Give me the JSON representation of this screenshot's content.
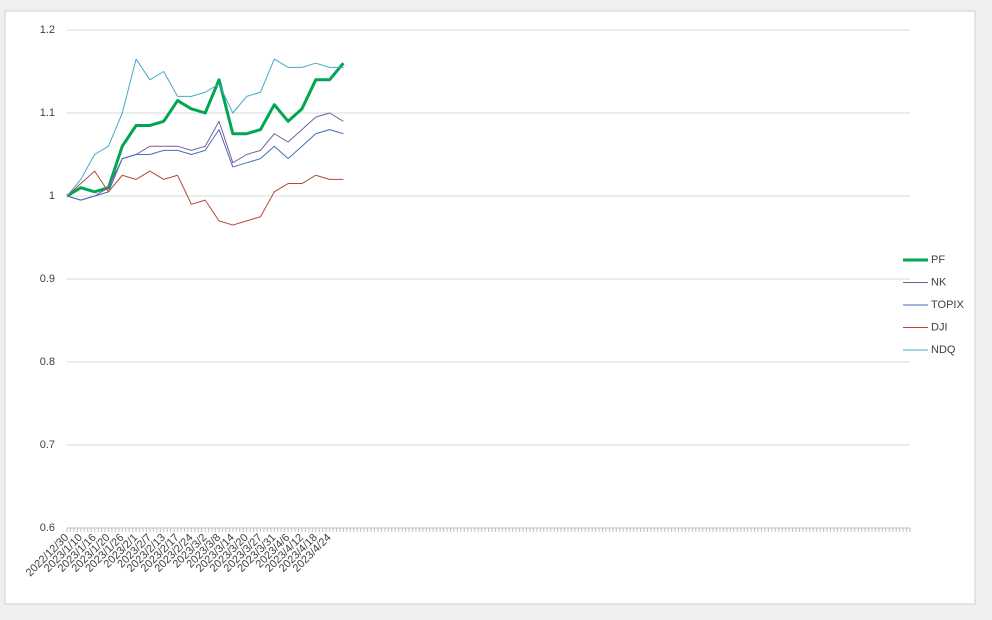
{
  "chart_data": {
    "type": "line",
    "categories": [
      "2022/12/30",
      "2023/1/10",
      "2023/1/16",
      "2023/1/20",
      "2023/1/26",
      "2023/2/1",
      "2023/2/7",
      "2023/2/13",
      "2023/2/17",
      "2023/2/24",
      "2023/3/2",
      "2023/3/8",
      "2023/3/14",
      "2023/3/20",
      "2023/3/27",
      "2023/3/31",
      "2023/4/6",
      "2023/4/12",
      "2023/4/18",
      "2023/4/24",
      null,
      null,
      null,
      null,
      null,
      null,
      null,
      null,
      null,
      null,
      null,
      null,
      null,
      null,
      null,
      null,
      null,
      null,
      null,
      null,
      null,
      null,
      null,
      null,
      null,
      null,
      null,
      null,
      null,
      null,
      null,
      null,
      null,
      null,
      null,
      null,
      null,
      null,
      null,
      null,
      null,
      null
    ],
    "series": [
      {
        "name": "PF",
        "color": "#00a651",
        "width": 3,
        "values": [
          1.0,
          1.01,
          1.005,
          1.01,
          1.06,
          1.085,
          1.085,
          1.09,
          1.115,
          1.105,
          1.1,
          1.14,
          1.075,
          1.075,
          1.08,
          1.11,
          1.09,
          1.105,
          1.14,
          1.14,
          1.16,
          null,
          null,
          null,
          null,
          null,
          null,
          null,
          null,
          null,
          null,
          null,
          null,
          null,
          null,
          null,
          null,
          null,
          null,
          null,
          null,
          null,
          null,
          null,
          null,
          null,
          null,
          null,
          null,
          null,
          null,
          null,
          null,
          null,
          null,
          null,
          null,
          null,
          null,
          null,
          null,
          null
        ]
      },
      {
        "name": "NK",
        "color": "#7a5c9e",
        "width": 1,
        "values": [
          1.0,
          0.995,
          1.0,
          1.01,
          1.045,
          1.05,
          1.06,
          1.06,
          1.06,
          1.055,
          1.06,
          1.09,
          1.04,
          1.05,
          1.055,
          1.075,
          1.065,
          1.08,
          1.095,
          1.1,
          1.09,
          null,
          null,
          null,
          null,
          null,
          null,
          null,
          null,
          null,
          null,
          null,
          null,
          null,
          null,
          null,
          null,
          null,
          null,
          null,
          null,
          null,
          null,
          null,
          null,
          null,
          null,
          null,
          null,
          null,
          null,
          null,
          null,
          null,
          null,
          null,
          null,
          null,
          null,
          null,
          null,
          null
        ]
      },
      {
        "name": "TOPIX",
        "color": "#4a6bb5",
        "width": 1,
        "values": [
          1.0,
          0.995,
          1.0,
          1.005,
          1.045,
          1.05,
          1.05,
          1.055,
          1.055,
          1.05,
          1.055,
          1.08,
          1.035,
          1.04,
          1.045,
          1.06,
          1.045,
          1.06,
          1.075,
          1.08,
          1.075,
          null,
          null,
          null,
          null,
          null,
          null,
          null,
          null,
          null,
          null,
          null,
          null,
          null,
          null,
          null,
          null,
          null,
          null,
          null,
          null,
          null,
          null,
          null,
          null,
          null,
          null,
          null,
          null,
          null,
          null,
          null,
          null,
          null,
          null,
          null,
          null,
          null,
          null,
          null,
          null,
          null
        ]
      },
      {
        "name": "DJI",
        "color": "#b5473e",
        "width": 1,
        "values": [
          1.0,
          1.015,
          1.03,
          1.005,
          1.025,
          1.02,
          1.03,
          1.02,
          1.025,
          0.99,
          0.995,
          0.97,
          0.965,
          0.97,
          0.975,
          1.005,
          1.015,
          1.015,
          1.025,
          1.02,
          1.02,
          null,
          null,
          null,
          null,
          null,
          null,
          null,
          null,
          null,
          null,
          null,
          null,
          null,
          null,
          null,
          null,
          null,
          null,
          null,
          null,
          null,
          null,
          null,
          null,
          null,
          null,
          null,
          null,
          null,
          null,
          null,
          null,
          null,
          null,
          null,
          null,
          null,
          null,
          null,
          null,
          null
        ]
      },
      {
        "name": "NDQ",
        "color": "#4aa8c8",
        "width": 1,
        "values": [
          1.0,
          1.02,
          1.05,
          1.06,
          1.1,
          1.165,
          1.14,
          1.15,
          1.12,
          1.12,
          1.125,
          1.135,
          1.1,
          1.12,
          1.125,
          1.165,
          1.155,
          1.155,
          1.16,
          1.155,
          1.155,
          null,
          null,
          null,
          null,
          null,
          null,
          null,
          null,
          null,
          null,
          null,
          null,
          null,
          null,
          null,
          null,
          null,
          null,
          null,
          null,
          null,
          null,
          null,
          null,
          null,
          null,
          null,
          null,
          null,
          null,
          null,
          null,
          null,
          null,
          null,
          null,
          null,
          null,
          null,
          null,
          null
        ]
      }
    ],
    "ylim": [
      0.6,
      1.2
    ],
    "yticks": [
      0.6,
      0.7,
      0.8,
      0.9,
      1,
      1.1,
      1.2
    ],
    "grid": true,
    "legend": "right"
  }
}
